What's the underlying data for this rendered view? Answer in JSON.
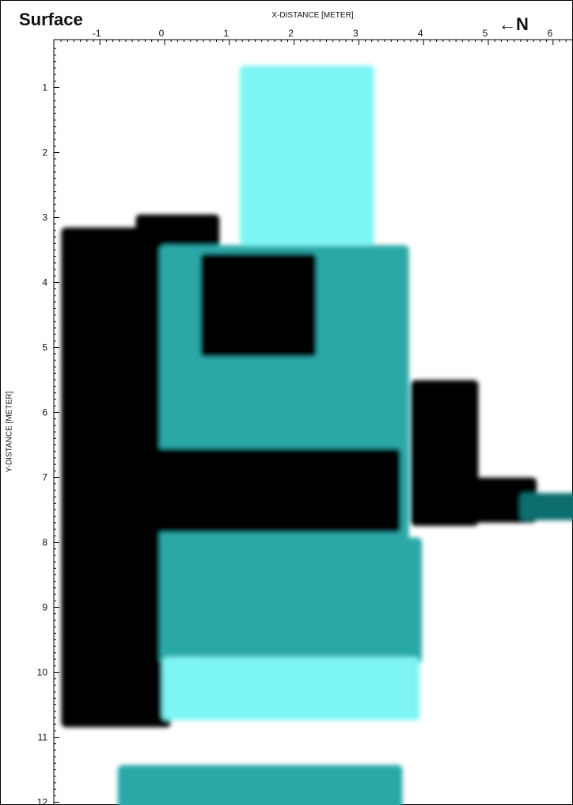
{
  "title": "Surface",
  "north_label": "N",
  "chart_data": {
    "type": "heatmap",
    "xlabel": "X-DISTANCE [METER]",
    "ylabel": "Y-DISTANCE [METER]",
    "xlim": [
      -1.6,
      6.3
    ],
    "ylim": [
      12.1,
      0.4
    ],
    "x_ticks": [
      -1,
      0,
      1,
      2,
      3,
      4,
      5,
      6
    ],
    "y_ticks": [
      1,
      2,
      3,
      4,
      5,
      6,
      7,
      8,
      9,
      10,
      11,
      12
    ],
    "colormap": [
      "#ffffff",
      "#8ff29a",
      "#7df5f5",
      "#2aa8a8",
      "#0f6e6e",
      "#000000"
    ],
    "anomalies": [
      {
        "x": [
          -1.45,
          -0.05
        ],
        "y": [
          3.3,
          10.7
        ],
        "level": 5
      },
      {
        "x": [
          -0.3,
          0.7
        ],
        "y": [
          3.1,
          3.6
        ],
        "level": 5
      },
      {
        "x": [
          0.0,
          3.7
        ],
        "y": [
          3.5,
          8.0
        ],
        "level": 3
      },
      {
        "x": [
          0.7,
          2.2
        ],
        "y": [
          3.7,
          5.0
        ],
        "level": 5
      },
      {
        "x": [
          0.0,
          3.5
        ],
        "y": [
          6.7,
          7.7
        ],
        "level": 5
      },
      {
        "x": [
          1.2,
          3.2
        ],
        "y": [
          0.7,
          3.4
        ],
        "level": 2
      },
      {
        "x": [
          3.95,
          4.7
        ],
        "y": [
          5.65,
          7.6
        ],
        "level": 5
      },
      {
        "x": [
          4.7,
          5.6
        ],
        "y": [
          7.15,
          7.55
        ],
        "level": 5
      },
      {
        "x": [
          5.6,
          6.3
        ],
        "y": [
          7.35,
          7.55
        ],
        "level": 4
      },
      {
        "x": [
          0.0,
          3.9
        ],
        "y": [
          8.0,
          9.8
        ],
        "level": 3
      },
      {
        "x": [
          0.0,
          3.9
        ],
        "y": [
          9.8,
          10.7
        ],
        "level": 2
      },
      {
        "x": [
          -0.65,
          3.6
        ],
        "y": [
          11.5,
          12.1
        ],
        "level": 3
      }
    ]
  }
}
